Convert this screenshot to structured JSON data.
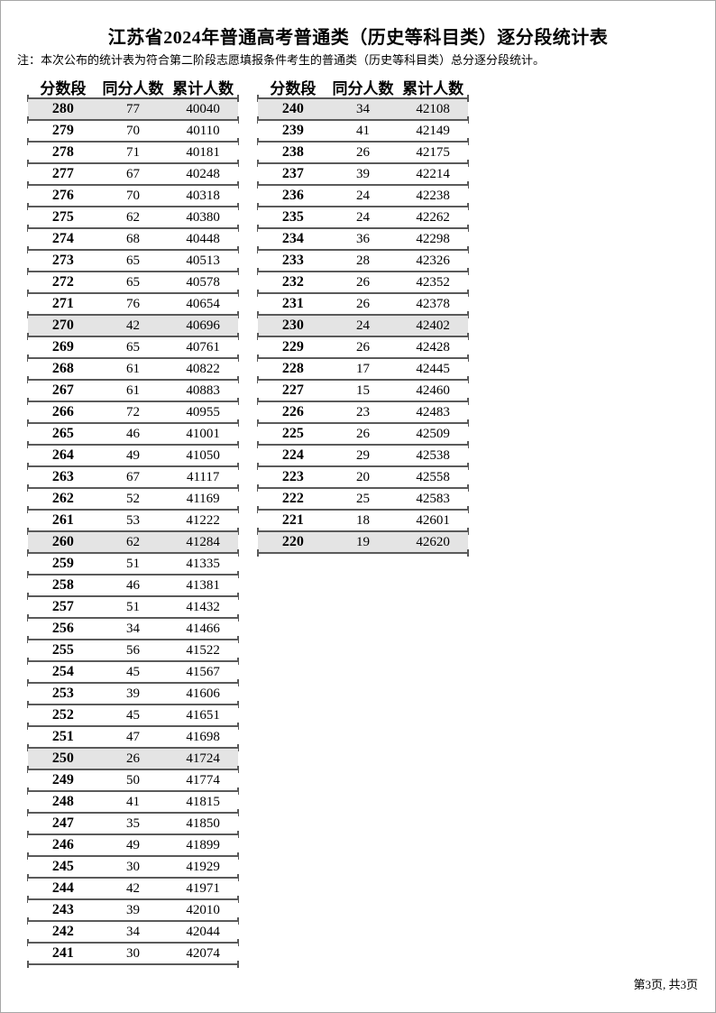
{
  "page": {
    "title": "江苏省2024年普通高考普通类（历史等科目类）逐分段统计表",
    "note": "注：本次公布的统计表为符合第二阶段志愿填报条件考生的普通类（历史等科目类）总分逐分段统计。",
    "footer": "第3页, 共3页"
  },
  "tables": {
    "headers": [
      "分数段",
      "同分人数",
      "累计人数"
    ],
    "left_rows": [
      [
        280,
        77,
        40040
      ],
      [
        279,
        70,
        40110
      ],
      [
        278,
        71,
        40181
      ],
      [
        277,
        67,
        40248
      ],
      [
        276,
        70,
        40318
      ],
      [
        275,
        62,
        40380
      ],
      [
        274,
        68,
        40448
      ],
      [
        273,
        65,
        40513
      ],
      [
        272,
        65,
        40578
      ],
      [
        271,
        76,
        40654
      ],
      [
        270,
        42,
        40696
      ],
      [
        269,
        65,
        40761
      ],
      [
        268,
        61,
        40822
      ],
      [
        267,
        61,
        40883
      ],
      [
        266,
        72,
        40955
      ],
      [
        265,
        46,
        41001
      ],
      [
        264,
        49,
        41050
      ],
      [
        263,
        67,
        41117
      ],
      [
        262,
        52,
        41169
      ],
      [
        261,
        53,
        41222
      ],
      [
        260,
        62,
        41284
      ],
      [
        259,
        51,
        41335
      ],
      [
        258,
        46,
        41381
      ],
      [
        257,
        51,
        41432
      ],
      [
        256,
        34,
        41466
      ],
      [
        255,
        56,
        41522
      ],
      [
        254,
        45,
        41567
      ],
      [
        253,
        39,
        41606
      ],
      [
        252,
        45,
        41651
      ],
      [
        251,
        47,
        41698
      ],
      [
        250,
        26,
        41724
      ],
      [
        249,
        50,
        41774
      ],
      [
        248,
        41,
        41815
      ],
      [
        247,
        35,
        41850
      ],
      [
        246,
        49,
        41899
      ],
      [
        245,
        30,
        41929
      ],
      [
        244,
        42,
        41971
      ],
      [
        243,
        39,
        42010
      ],
      [
        242,
        34,
        42044
      ],
      [
        241,
        30,
        42074
      ]
    ],
    "right_rows": [
      [
        240,
        34,
        42108
      ],
      [
        239,
        41,
        42149
      ],
      [
        238,
        26,
        42175
      ],
      [
        237,
        39,
        42214
      ],
      [
        236,
        24,
        42238
      ],
      [
        235,
        24,
        42262
      ],
      [
        234,
        36,
        42298
      ],
      [
        233,
        28,
        42326
      ],
      [
        232,
        26,
        42352
      ],
      [
        231,
        26,
        42378
      ],
      [
        230,
        24,
        42402
      ],
      [
        229,
        26,
        42428
      ],
      [
        228,
        17,
        42445
      ],
      [
        227,
        15,
        42460
      ],
      [
        226,
        23,
        42483
      ],
      [
        225,
        26,
        42509
      ],
      [
        224,
        29,
        42538
      ],
      [
        223,
        20,
        42558
      ],
      [
        222,
        25,
        42583
      ],
      [
        221,
        18,
        42601
      ],
      [
        220,
        19,
        42620
      ]
    ]
  },
  "colors": {
    "line": "#5a5a5a",
    "shaded_row_bg": "#e4e4e4",
    "page_border": "#a6a6a6"
  }
}
